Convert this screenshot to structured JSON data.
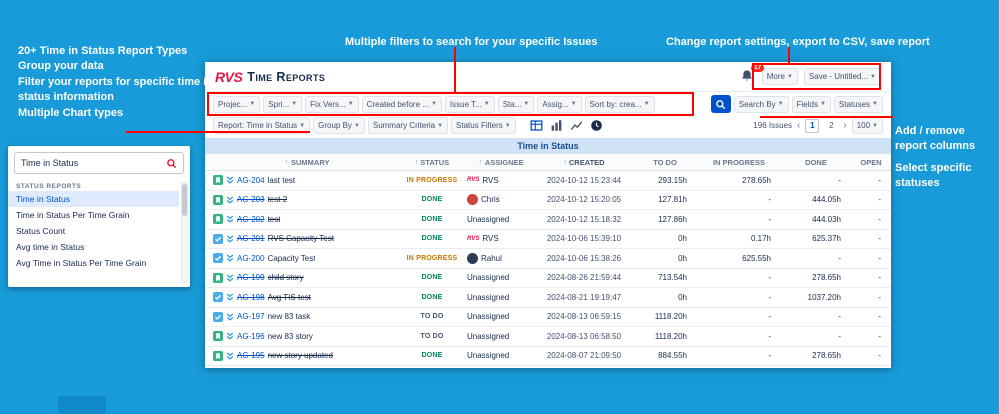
{
  "colors": {
    "background": "#189bd8",
    "callout": "#ff0000",
    "brand": "#e8174a",
    "link": "#0052cc",
    "status": {
      "TO DO": "#42526e",
      "IN PROGRESS": "#c77700",
      "DONE": "#00875a"
    }
  },
  "icons": {
    "notifications": "bell-icon",
    "search": "search-icon",
    "dropdown": "chevron-down-icon",
    "views": [
      "table-view-icon",
      "bar-chart-view-icon",
      "line-chart-view-icon",
      "clock-view-icon"
    ],
    "sort": "↑"
  },
  "annotations": {
    "left_lines": [
      "20+ Time in Status Report Types",
      "Group your data",
      "Filter your reports for specific time in status information",
      "Multiple Chart types"
    ],
    "top_center": "Multiple filters to search for your specific Issues",
    "top_right": "Change report settings, export to CSV, save report",
    "right_columns": "Add / remove report columns",
    "right_statuses": "Select specific statuses"
  },
  "report_picker": {
    "search_value": "Time in Status",
    "group_label": "STATUS REPORTS",
    "items": [
      "Time in Status",
      "Time in Status Per Time Grain",
      "Status Count",
      "Avg time in Status",
      "Avg Time in Status Per Time Grain"
    ],
    "selected_index": 0
  },
  "app": {
    "logo": "RVS",
    "title": "Time Reports",
    "notifications": "17",
    "more": "More",
    "save": "Save - Untitled...",
    "filters": [
      "Projec...",
      "Spri...",
      "Fix Vers...",
      "Created before ...",
      "Issue T...",
      "Sta...",
      "Assig...",
      "Sort by: crea..."
    ],
    "search_by": "Search By",
    "fields": "Fields",
    "statuses": "Statuses",
    "report_chip": "Report: Time in Status",
    "group_by": "Group By",
    "summary_criteria": "Summary Criteria",
    "status_filters": "Status Filters",
    "issues_count": "196 Issues",
    "pagination": {
      "prev": "‹",
      "pages": [
        "1",
        "2"
      ],
      "current": "1",
      "next": "›",
      "page_size": "100"
    },
    "table": {
      "band": "Time in Status",
      "columns": [
        {
          "label": "SUMMARY",
          "sorted": true
        },
        {
          "label": "STATUS",
          "sorted": true
        },
        {
          "label": "ASSIGNEE",
          "sorted": true
        },
        {
          "label": "CREATED",
          "sorted": true
        },
        {
          "label": "TO DO",
          "sorted": false
        },
        {
          "label": "IN PROGRESS",
          "sorted": false
        },
        {
          "label": "DONE",
          "sorted": false
        },
        {
          "label": "OPEN",
          "sorted": false
        }
      ],
      "rows": [
        {
          "type": "story",
          "key": "AG-204",
          "summary": "last test",
          "resolved": false,
          "status": "IN PROGRESS",
          "assignee": "RVS",
          "avatar": "rvs",
          "created": "2024-10-12 15:23:44",
          "to_do": "293.15h",
          "in_progress": "278.65h",
          "done": "-",
          "open": "-"
        },
        {
          "type": "story",
          "key": "AG-203",
          "summary": "test 2",
          "resolved": true,
          "status": "DONE",
          "assignee": "Chris",
          "avatar": "red",
          "created": "2024-10-12 15:20:05",
          "to_do": "127.81h",
          "in_progress": "-",
          "done": "444.05h",
          "open": "-"
        },
        {
          "type": "story",
          "key": "AG-202",
          "summary": "test",
          "resolved": true,
          "status": "DONE",
          "assignee": "Unassigned",
          "avatar": null,
          "created": "2024-10-12 15:18:32",
          "to_do": "127.86h",
          "in_progress": "-",
          "done": "444.03h",
          "open": "-"
        },
        {
          "type": "task",
          "key": "AG-201",
          "summary": "RVS Capacity Test",
          "resolved": true,
          "status": "DONE",
          "assignee": "RVS",
          "avatar": "rvs",
          "created": "2024-10-06 15:39:10",
          "to_do": "0h",
          "in_progress": "0.17h",
          "done": "625.37h",
          "open": "-"
        },
        {
          "type": "task",
          "key": "AG-200",
          "summary": "Capacity Test",
          "resolved": false,
          "status": "IN PROGRESS",
          "assignee": "Rahul",
          "avatar": "dark",
          "created": "2024-10-06 15:38:26",
          "to_do": "0h",
          "in_progress": "625.55h",
          "done": "-",
          "open": "-"
        },
        {
          "type": "story",
          "key": "AG-199",
          "summary": "child story",
          "resolved": true,
          "status": "DONE",
          "assignee": "Unassigned",
          "avatar": null,
          "created": "2024-08-26 21:59:44",
          "to_do": "713.54h",
          "in_progress": "-",
          "done": "278.65h",
          "open": "-"
        },
        {
          "type": "task",
          "key": "AG-198",
          "summary": "Avg TIS test",
          "resolved": true,
          "status": "DONE",
          "assignee": "Unassigned",
          "avatar": null,
          "created": "2024-08-21 19:19:47",
          "to_do": "0h",
          "in_progress": "-",
          "done": "1037.20h",
          "open": "-"
        },
        {
          "type": "task",
          "key": "AG-197",
          "summary": "new 83 task",
          "resolved": false,
          "status": "TO DO",
          "assignee": "Unassigned",
          "avatar": null,
          "created": "2024-08-13 06:59:15",
          "to_do": "1118.20h",
          "in_progress": "-",
          "done": "-",
          "open": "-"
        },
        {
          "type": "story",
          "key": "AG-196",
          "summary": "new 83 story",
          "resolved": false,
          "status": "TO DO",
          "assignee": "Unassigned",
          "avatar": null,
          "created": "2024-08-13 06:58:50",
          "to_do": "1118.20h",
          "in_progress": "-",
          "done": "-",
          "open": "-"
        },
        {
          "type": "story",
          "key": "AG-195",
          "summary": "new story updated",
          "resolved": true,
          "status": "DONE",
          "assignee": "Unassigned",
          "avatar": null,
          "created": "2024-08-07 21:09:50",
          "to_do": "884.55h",
          "in_progress": "-",
          "done": "278.65h",
          "open": "-"
        }
      ]
    }
  }
}
